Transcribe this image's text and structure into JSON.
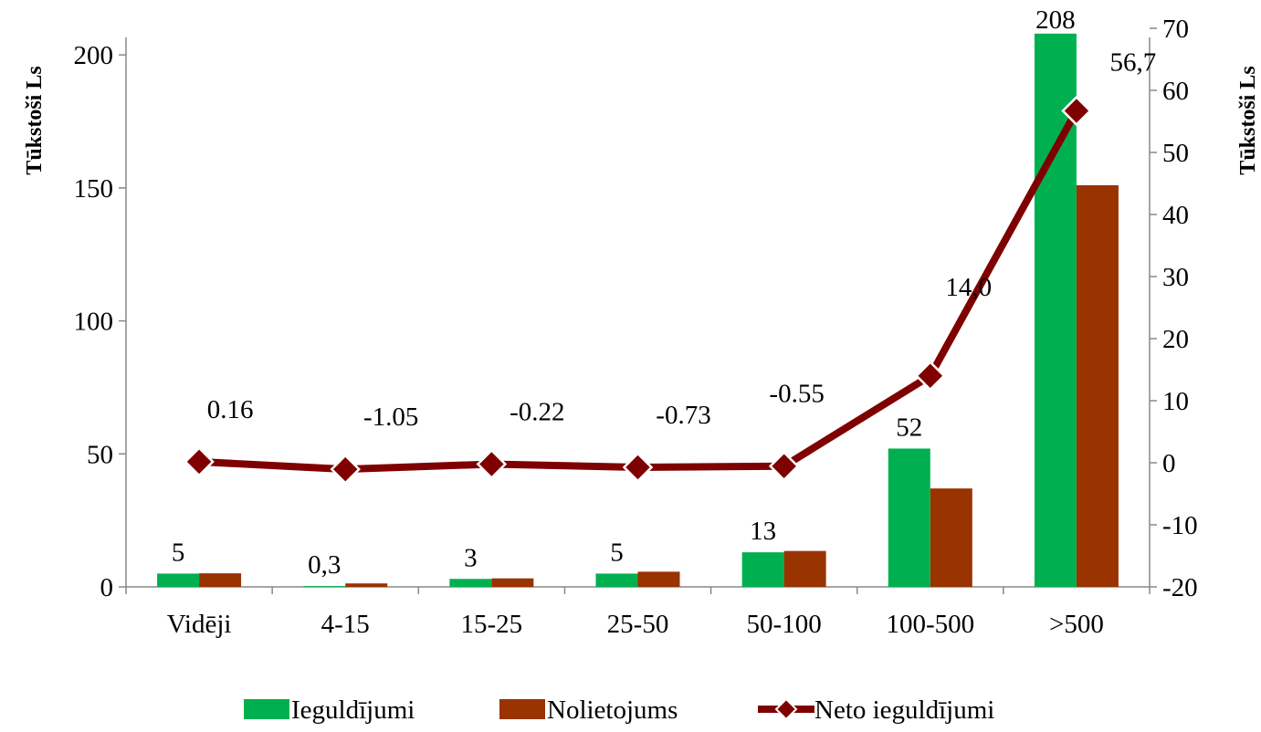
{
  "chart_data": {
    "type": "bar",
    "categories": [
      "Vidēji",
      "4-15",
      "15-25",
      "25-50",
      "50-100",
      "100-500",
      ">500"
    ],
    "series": [
      {
        "name": "Ieguldījumi",
        "kind": "bar",
        "axis": "left",
        "color": "#00b050",
        "values": [
          5,
          0.3,
          3,
          5,
          13,
          52,
          208
        ],
        "labels": [
          "5",
          "0,3",
          "3",
          "5",
          "13",
          "52",
          "208"
        ]
      },
      {
        "name": "Nolietojums",
        "kind": "bar",
        "axis": "left",
        "color": "#993300",
        "values": [
          5.1,
          1.3,
          3.2,
          5.7,
          13.5,
          37,
          151
        ],
        "labels": []
      },
      {
        "name": "Neto ieguldījumi",
        "kind": "line",
        "axis": "right",
        "color": "#7f0000",
        "values": [
          0.16,
          -1.05,
          -0.22,
          -0.73,
          -0.55,
          14.0,
          56.7
        ],
        "labels": [
          "0.16",
          "-1.05",
          "-0.22",
          "-0.73",
          "-0.55",
          "14,0",
          "56,7"
        ]
      }
    ],
    "y_left": {
      "label": "Tūkstoši  Ls",
      "range": [
        0,
        210
      ],
      "ticks": [
        0,
        50,
        100,
        150,
        200
      ],
      "tick_labels": [
        "0",
        "50",
        "100",
        "150",
        "200"
      ]
    },
    "y_right": {
      "label": "Tūkstoši  Ls",
      "range": [
        -20,
        70
      ],
      "ticks": [
        -20,
        -10,
        0,
        10,
        20,
        30,
        40,
        50,
        60,
        70
      ],
      "tick_labels": [
        "-20",
        "-10",
        "0",
        "10",
        "20",
        "30",
        "40",
        "50",
        "60",
        "70"
      ]
    },
    "grid": false,
    "legend_position": "bottom"
  }
}
